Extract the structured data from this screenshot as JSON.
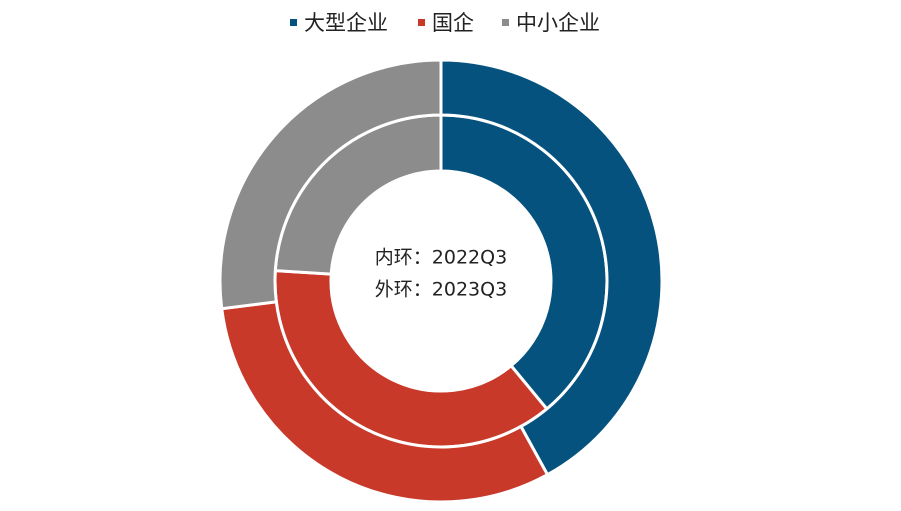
{
  "chart_data": {
    "type": "donut",
    "categories": [
      "大型企业",
      "国企",
      "中小企业"
    ],
    "colors": [
      "#05527f",
      "#c8392a",
      "#8c8c8c"
    ],
    "rings": [
      {
        "label": "内环：2022Q3",
        "values": [
          39,
          37,
          24
        ]
      },
      {
        "label": "外环：2023Q3",
        "values": [
          42,
          31,
          27
        ]
      }
    ],
    "legend": "top"
  }
}
